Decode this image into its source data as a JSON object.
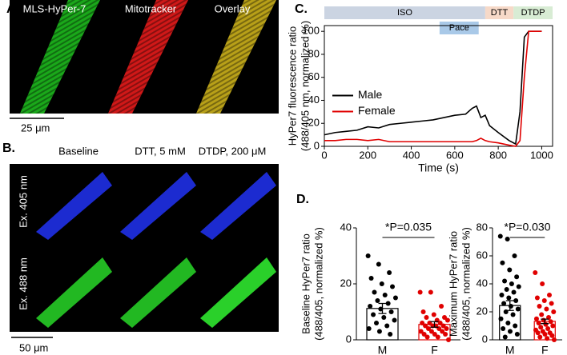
{
  "figure": {
    "panels": {
      "a": "A.",
      "b": "B.",
      "c": "C.",
      "d": "D."
    },
    "panel_a": {
      "channels": [
        "MLS-HyPer-7",
        "Mitotracker",
        "Overlay"
      ],
      "scale_bar": "25 μm"
    },
    "panel_b": {
      "columns": [
        "Baseline",
        "DTT, 5 mM",
        "DTDP, 200 μM"
      ],
      "rows": [
        "Ex. 405 nm",
        "Ex. 488 nm"
      ],
      "scale_bar": "50 μm"
    }
  },
  "chart_data": [
    {
      "type": "line",
      "xlabel": "Time (s)",
      "ylabel": [
        "HyPer7 fluorescence ratio",
        "(488/405 nm, normalized %)"
      ],
      "x": [
        0,
        50,
        100,
        150,
        200,
        250,
        300,
        350,
        400,
        450,
        500,
        550,
        600,
        650,
        680,
        700,
        720,
        740,
        760,
        800,
        850,
        880,
        900,
        920,
        940,
        960,
        1000
      ],
      "series": [
        {
          "name": "Male",
          "color": "#000000",
          "values": [
            10,
            12,
            13,
            14,
            17,
            16,
            19,
            20,
            21,
            22,
            23,
            25,
            27,
            28,
            33,
            35,
            25,
            27,
            18,
            12,
            5,
            2,
            30,
            95,
            100,
            100,
            100
          ]
        },
        {
          "name": "Female",
          "color": "#e00000",
          "values": [
            5,
            5,
            6,
            6,
            5,
            6,
            4,
            4,
            4,
            4,
            4,
            4,
            4,
            4,
            4,
            5,
            7,
            5,
            4,
            3,
            1,
            0,
            5,
            60,
            100,
            100,
            100
          ]
        }
      ],
      "protocol": [
        {
          "label": "ISO",
          "start": 0,
          "end": 740,
          "color": "#cbd4e2",
          "row": 0
        },
        {
          "label": "DTT",
          "start": 740,
          "end": 870,
          "color": "#f6d9c8",
          "row": 0
        },
        {
          "label": "DTDP",
          "start": 870,
          "end": 1050,
          "color": "#d8ecd4",
          "row": 0
        },
        {
          "label": "Pace",
          "start": 530,
          "end": 710,
          "color": "#a9c9e8",
          "row": 1
        }
      ],
      "xlim": [
        0,
        1050
      ],
      "ylim": [
        0,
        105
      ],
      "xticks": [
        0,
        200,
        400,
        600,
        800,
        1000
      ],
      "yticks": [
        0,
        20,
        40,
        60,
        80,
        100
      ],
      "legend": "middle-left"
    },
    {
      "type": "bar",
      "ylabel": [
        "Baseline HyPer7 ratio",
        "(488/405, normalized %)"
      ],
      "categories": [
        "M",
        "F"
      ],
      "values": [
        11.2,
        5.5
      ],
      "errors": [
        1.8,
        1.0
      ],
      "colors": [
        "#000000",
        "#e00000"
      ],
      "points": [
        [
          30,
          27,
          24,
          22,
          20,
          19,
          17,
          16,
          15,
          14,
          13,
          12,
          11,
          10,
          9,
          8,
          7,
          6,
          5,
          4,
          3,
          2
        ],
        [
          17,
          17,
          12,
          10,
          9,
          8,
          8,
          7,
          7,
          6,
          6,
          6,
          5,
          5,
          5,
          5,
          4,
          4,
          4,
          3,
          3,
          3,
          2,
          2,
          2,
          1,
          1,
          0
        ]
      ],
      "annotation": "*P=0.035",
      "ylim": [
        0,
        40
      ],
      "yticks": [
        0,
        20,
        40
      ]
    },
    {
      "type": "bar",
      "ylabel": [
        "Maximum HyPer7 ratio",
        "(488/405, normalized %)"
      ],
      "categories": [
        "M",
        "F"
      ],
      "values": [
        24.5,
        13.2
      ],
      "errors": [
        3.5,
        1.6
      ],
      "colors": [
        "#000000",
        "#e00000"
      ],
      "points": [
        [
          74,
          72,
          60,
          55,
          50,
          45,
          42,
          40,
          38,
          36,
          34,
          32,
          30,
          28,
          26,
          24,
          22,
          20,
          18,
          15,
          12,
          10,
          8,
          6,
          4,
          2
        ],
        [
          48,
          40,
          32,
          30,
          28,
          26,
          24,
          22,
          20,
          18,
          16,
          15,
          14,
          13,
          12,
          11,
          10,
          9,
          8,
          7,
          6,
          5,
          5,
          4,
          3,
          2,
          1,
          0
        ]
      ],
      "annotation": "*P=0.030",
      "ylim": [
        0,
        80
      ],
      "yticks": [
        0,
        20,
        40,
        60,
        80
      ]
    }
  ]
}
